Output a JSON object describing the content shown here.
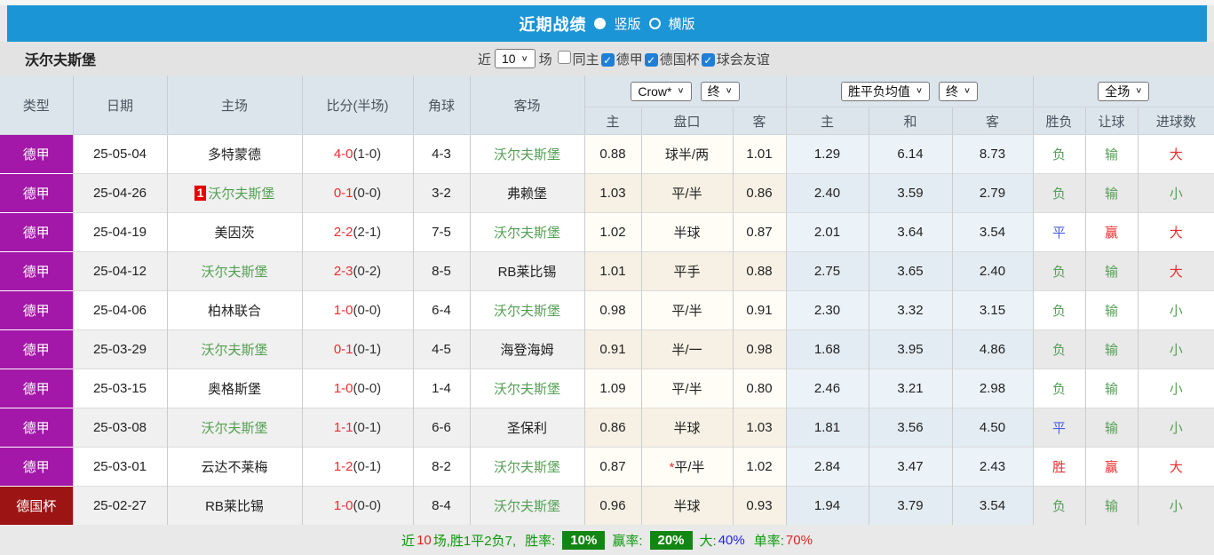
{
  "title_bar": {
    "title": "近期战绩",
    "layout_vertical": "竖版",
    "layout_horizontal": "横版"
  },
  "filter_bar": {
    "team_name": "沃尔夫斯堡",
    "near_label": "近",
    "match_count": "10",
    "games_label": "场",
    "checkboxes": [
      {
        "label": "同主",
        "checked": false
      },
      {
        "label": "德甲",
        "checked": true
      },
      {
        "label": "德国杯",
        "checked": true
      },
      {
        "label": "球会友谊",
        "checked": true
      }
    ]
  },
  "table": {
    "column_headers": {
      "type": "类型",
      "date": "日期",
      "home": "主场",
      "score": "比分(半场)",
      "corner": "角球",
      "away": "客场"
    },
    "selects": {
      "company": "Crow*",
      "company_time": "终",
      "avg": "胜平负均值",
      "avg_time": "终",
      "scope": "全场"
    },
    "sub_headers": {
      "odds_home": "主",
      "handicap": "盘口",
      "odds_away": "客",
      "avg_home": "主",
      "avg_draw": "和",
      "avg_away": "客",
      "result": "胜负",
      "let_ball": "让球",
      "goals": "进球数"
    },
    "rows": [
      {
        "type": "德甲",
        "style": "league",
        "date": "25-05-04",
        "home": "多特蒙德",
        "home_green": false,
        "badge": "",
        "score": "4-0",
        "half": "(1-0)",
        "corner": "4-3",
        "away": "沃尔夫斯堡",
        "away_green": true,
        "o1": "0.88",
        "pan": "球半/两",
        "star": false,
        "o2": "1.01",
        "a1": "1.29",
        "a2": "6.14",
        "a3": "8.73",
        "res": "负",
        "res_c": "green",
        "let": "输",
        "let_c": "green",
        "goal": "大",
        "goal_c": "red"
      },
      {
        "type": "德甲",
        "style": "league",
        "date": "25-04-26",
        "home": "沃尔夫斯堡",
        "home_green": true,
        "badge": "1",
        "score": "0-1",
        "half": "(0-0)",
        "corner": "3-2",
        "away": "弗赖堡",
        "away_green": false,
        "o1": "1.03",
        "pan": "平/半",
        "star": false,
        "o2": "0.86",
        "a1": "2.40",
        "a2": "3.59",
        "a3": "2.79",
        "res": "负",
        "res_c": "green",
        "let": "输",
        "let_c": "green",
        "goal": "小",
        "goal_c": "green"
      },
      {
        "type": "德甲",
        "style": "league",
        "date": "25-04-19",
        "home": "美因茨",
        "home_green": false,
        "badge": "",
        "score": "2-2",
        "half": "(2-1)",
        "corner": "7-5",
        "away": "沃尔夫斯堡",
        "away_green": true,
        "o1": "1.02",
        "pan": "半球",
        "star": false,
        "o2": "0.87",
        "a1": "2.01",
        "a2": "3.64",
        "a3": "3.54",
        "res": "平",
        "res_c": "blue",
        "let": "赢",
        "let_c": "red",
        "goal": "大",
        "goal_c": "red"
      },
      {
        "type": "德甲",
        "style": "league",
        "date": "25-04-12",
        "home": "沃尔夫斯堡",
        "home_green": true,
        "badge": "",
        "score": "2-3",
        "half": "(0-2)",
        "corner": "8-5",
        "away": "RB莱比锡",
        "away_green": false,
        "o1": "1.01",
        "pan": "平手",
        "star": false,
        "o2": "0.88",
        "a1": "2.75",
        "a2": "3.65",
        "a3": "2.40",
        "res": "负",
        "res_c": "green",
        "let": "输",
        "let_c": "green",
        "goal": "大",
        "goal_c": "red"
      },
      {
        "type": "德甲",
        "style": "league",
        "date": "25-04-06",
        "home": "柏林联合",
        "home_green": false,
        "badge": "",
        "score": "1-0",
        "half": "(0-0)",
        "corner": "6-4",
        "away": "沃尔夫斯堡",
        "away_green": true,
        "o1": "0.98",
        "pan": "平/半",
        "star": false,
        "o2": "0.91",
        "a1": "2.30",
        "a2": "3.32",
        "a3": "3.15",
        "res": "负",
        "res_c": "green",
        "let": "输",
        "let_c": "green",
        "goal": "小",
        "goal_c": "green"
      },
      {
        "type": "德甲",
        "style": "league",
        "date": "25-03-29",
        "home": "沃尔夫斯堡",
        "home_green": true,
        "badge": "",
        "score": "0-1",
        "half": "(0-1)",
        "corner": "4-5",
        "away": "海登海姆",
        "away_green": false,
        "o1": "0.91",
        "pan": "半/一",
        "star": false,
        "o2": "0.98",
        "a1": "1.68",
        "a2": "3.95",
        "a3": "4.86",
        "res": "负",
        "res_c": "green",
        "let": "输",
        "let_c": "green",
        "goal": "小",
        "goal_c": "green"
      },
      {
        "type": "德甲",
        "style": "league",
        "date": "25-03-15",
        "home": "奥格斯堡",
        "home_green": false,
        "badge": "",
        "score": "1-0",
        "half": "(0-0)",
        "corner": "1-4",
        "away": "沃尔夫斯堡",
        "away_green": true,
        "o1": "1.09",
        "pan": "平/半",
        "star": false,
        "o2": "0.80",
        "a1": "2.46",
        "a2": "3.21",
        "a3": "2.98",
        "res": "负",
        "res_c": "green",
        "let": "输",
        "let_c": "green",
        "goal": "小",
        "goal_c": "green"
      },
      {
        "type": "德甲",
        "style": "league",
        "date": "25-03-08",
        "home": "沃尔夫斯堡",
        "home_green": true,
        "badge": "",
        "score": "1-1",
        "half": "(0-1)",
        "corner": "6-6",
        "away": "圣保利",
        "away_green": false,
        "o1": "0.86",
        "pan": "半球",
        "star": false,
        "o2": "1.03",
        "a1": "1.81",
        "a2": "3.56",
        "a3": "4.50",
        "res": "平",
        "res_c": "blue",
        "let": "输",
        "let_c": "green",
        "goal": "小",
        "goal_c": "green"
      },
      {
        "type": "德甲",
        "style": "league",
        "date": "25-03-01",
        "home": "云达不莱梅",
        "home_green": false,
        "badge": "",
        "score": "1-2",
        "half": "(0-1)",
        "corner": "8-2",
        "away": "沃尔夫斯堡",
        "away_green": true,
        "o1": "0.87",
        "pan": "平/半",
        "star": true,
        "o2": "1.02",
        "a1": "2.84",
        "a2": "3.47",
        "a3": "2.43",
        "res": "胜",
        "res_c": "red",
        "let": "赢",
        "let_c": "red",
        "goal": "大",
        "goal_c": "red"
      },
      {
        "type": "德国杯",
        "style": "cup",
        "date": "25-02-27",
        "home": "RB莱比锡",
        "home_green": false,
        "badge": "",
        "score": "1-0",
        "half": "(0-0)",
        "corner": "8-4",
        "away": "沃尔夫斯堡",
        "away_green": true,
        "o1": "0.96",
        "pan": "半球",
        "star": false,
        "o2": "0.93",
        "a1": "1.94",
        "a2": "3.79",
        "a3": "3.54",
        "res": "负",
        "res_c": "green",
        "let": "输",
        "let_c": "green",
        "goal": "小",
        "goal_c": "green"
      }
    ]
  },
  "footer": {
    "near": "近",
    "count": "10",
    "record": "场,胜1平2负7,",
    "winrate_label": "胜率:",
    "winrate": "10%",
    "beatrate_label": "赢率:",
    "beatrate": "20%",
    "big_label": "大:",
    "big_value": "40%",
    "single_label": "单率:",
    "single_value": "70%"
  },
  "colors": {
    "bar_blue": "#1b95d6",
    "league_purple": "#a318a8",
    "cup_red": "#9d1414",
    "team_green": "#55a055",
    "score_red": "#ee2c2c",
    "result_blue": "#4a5fe0",
    "badge_green": "#128612",
    "rank_badge_red": "#e60000"
  }
}
